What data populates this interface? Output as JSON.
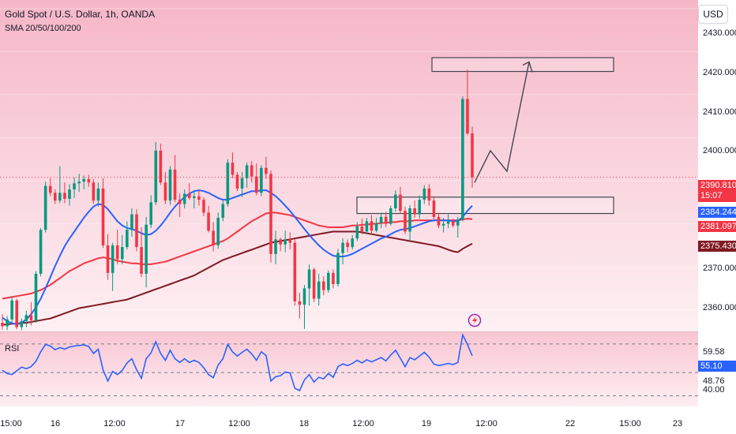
{
  "header": {
    "title": "Gold Spot / U.S. Dollar, 1h, OANDA",
    "indicators": "SMA 20/50/100/200",
    "currency_button": "USD"
  },
  "price_axis": {
    "ticks": [
      "2430.000",
      "2420.000",
      "2410.000",
      "2400.000",
      "2370.000",
      "2360.000"
    ]
  },
  "price_tags": {
    "last": {
      "value": "2390.810",
      "countdown": "15:07",
      "color": "#f23645"
    },
    "sma_blue": {
      "value": "2384.244",
      "color": "#2962ff"
    },
    "sma_red": {
      "value": "2381.097",
      "color": "#f23645"
    },
    "sma_dark": {
      "value": "2375.430",
      "color": "#801922"
    }
  },
  "rsi": {
    "label": "RSI",
    "ticks": [
      "59.58",
      "55.10",
      "48.76",
      "40.00"
    ],
    "current_color": "#2962ff"
  },
  "time_axis": {
    "labels": [
      "15:00",
      "16",
      "12:00",
      "17",
      "12:00",
      "18",
      "12:00",
      "19",
      "12:00",
      "22",
      "15:00",
      "23"
    ]
  },
  "chart_data": {
    "type": "candlestick",
    "title": "Gold Spot / U.S. Dollar, 1h, OANDA",
    "ylim": [
      2355,
      2432
    ],
    "up_color": "#089981",
    "down_color": "#f23645",
    "candles": [
      [
        2357.0,
        2359.0,
        2355.4,
        2356.2
      ],
      [
        2356.2,
        2358.6,
        2355.3,
        2357.8
      ],
      [
        2357.8,
        2363.0,
        2357.0,
        2362.2
      ],
      [
        2362.2,
        2362.6,
        2355.5,
        2356.0
      ],
      [
        2356.0,
        2358.0,
        2355.3,
        2357.4
      ],
      [
        2357.4,
        2359.8,
        2356.0,
        2358.8
      ],
      [
        2358.8,
        2361.8,
        2356.4,
        2357.6
      ],
      [
        2357.6,
        2369.0,
        2357.0,
        2368.4
      ],
      [
        2368.4,
        2379.0,
        2367.8,
        2378.6
      ],
      [
        2378.6,
        2389.8,
        2378.0,
        2388.8
      ],
      [
        2388.8,
        2390.6,
        2386.4,
        2387.2
      ],
      [
        2387.2,
        2388.0,
        2384.6,
        2385.4
      ],
      [
        2385.4,
        2393.4,
        2384.8,
        2387.2
      ],
      [
        2387.2,
        2389.6,
        2384.8,
        2385.8
      ],
      [
        2385.8,
        2389.2,
        2384.2,
        2388.0
      ],
      [
        2388.0,
        2390.8,
        2386.0,
        2389.4
      ],
      [
        2389.4,
        2391.6,
        2387.4,
        2389.8
      ],
      [
        2389.8,
        2391.2,
        2388.0,
        2390.4
      ],
      [
        2390.4,
        2391.4,
        2388.6,
        2389.6
      ],
      [
        2389.6,
        2390.4,
        2384.6,
        2385.4
      ],
      [
        2385.4,
        2389.6,
        2384.0,
        2388.2
      ],
      [
        2388.2,
        2390.6,
        2374.4,
        2375.0
      ],
      [
        2375.0,
        2377.6,
        2367.0,
        2368.6
      ],
      [
        2368.6,
        2375.6,
        2364.4,
        2375.0
      ],
      [
        2375.0,
        2378.6,
        2370.6,
        2371.8
      ],
      [
        2371.8,
        2377.4,
        2370.6,
        2374.6
      ],
      [
        2374.6,
        2380.6,
        2374.0,
        2378.6
      ],
      [
        2378.6,
        2383.6,
        2377.0,
        2382.2
      ],
      [
        2382.2,
        2383.4,
        2373.6,
        2374.6
      ],
      [
        2374.6,
        2379.2,
        2367.6,
        2368.4
      ],
      [
        2368.4,
        2381.6,
        2365.2,
        2379.8
      ],
      [
        2379.8,
        2386.6,
        2379.0,
        2385.0
      ],
      [
        2385.0,
        2399.0,
        2384.4,
        2397.0
      ],
      [
        2397.0,
        2398.6,
        2389.0,
        2389.6
      ],
      [
        2389.6,
        2392.0,
        2384.6,
        2385.4
      ],
      [
        2385.4,
        2393.4,
        2384.4,
        2392.6
      ],
      [
        2392.6,
        2396.0,
        2385.0,
        2385.6
      ],
      [
        2385.6,
        2387.0,
        2381.6,
        2384.6
      ],
      [
        2384.6,
        2388.0,
        2383.6,
        2387.0
      ],
      [
        2387.0,
        2389.4,
        2385.6,
        2386.0
      ],
      [
        2386.0,
        2387.8,
        2383.6,
        2386.4
      ],
      [
        2386.4,
        2387.8,
        2384.2,
        2385.6
      ],
      [
        2385.6,
        2386.2,
        2381.8,
        2382.6
      ],
      [
        2382.6,
        2384.2,
        2378.0,
        2378.4
      ],
      [
        2378.4,
        2380.4,
        2373.6,
        2375.0
      ],
      [
        2375.0,
        2382.6,
        2374.2,
        2381.4
      ],
      [
        2381.4,
        2385.4,
        2380.6,
        2384.6
      ],
      [
        2384.6,
        2395.0,
        2384.0,
        2394.2
      ],
      [
        2394.2,
        2396.6,
        2390.6,
        2391.4
      ],
      [
        2391.4,
        2392.0,
        2387.6,
        2388.2
      ],
      [
        2388.2,
        2392.0,
        2386.2,
        2390.6
      ],
      [
        2390.6,
        2394.2,
        2388.4,
        2393.6
      ],
      [
        2393.6,
        2394.6,
        2389.6,
        2391.0
      ],
      [
        2391.0,
        2394.0,
        2386.6,
        2387.2
      ],
      [
        2387.2,
        2393.6,
        2386.4,
        2393.0
      ],
      [
        2393.0,
        2395.6,
        2390.4,
        2391.6
      ],
      [
        2391.6,
        2392.4,
        2371.0,
        2373.0
      ],
      [
        2373.0,
        2378.4,
        2370.6,
        2376.4
      ],
      [
        2376.4,
        2376.8,
        2373.6,
        2375.2
      ],
      [
        2375.2,
        2378.4,
        2373.4,
        2376.4
      ],
      [
        2376.4,
        2378.0,
        2374.0,
        2375.6
      ],
      [
        2375.6,
        2376.4,
        2361.0,
        2362.0
      ],
      [
        2362.0,
        2364.0,
        2358.0,
        2361.2
      ],
      [
        2361.2,
        2365.8,
        2355.6,
        2365.0
      ],
      [
        2365.0,
        2370.6,
        2361.0,
        2369.4
      ],
      [
        2369.4,
        2369.8,
        2361.8,
        2362.6
      ],
      [
        2362.6,
        2368.4,
        2361.0,
        2366.6
      ],
      [
        2366.6,
        2367.8,
        2363.4,
        2364.6
      ],
      [
        2364.6,
        2369.2,
        2364.0,
        2368.6
      ],
      [
        2368.6,
        2369.4,
        2365.0,
        2366.0
      ],
      [
        2366.0,
        2374.2,
        2365.4,
        2373.2
      ],
      [
        2373.2,
        2376.6,
        2370.6,
        2375.6
      ],
      [
        2375.6,
        2376.4,
        2373.4,
        2374.6
      ],
      [
        2374.6,
        2377.4,
        2374.0,
        2376.6
      ],
      [
        2376.6,
        2380.4,
        2376.0,
        2379.4
      ],
      [
        2379.4,
        2381.2,
        2377.6,
        2378.2
      ],
      [
        2378.2,
        2381.4,
        2377.6,
        2380.6
      ],
      [
        2380.6,
        2382.0,
        2377.6,
        2378.4
      ],
      [
        2378.4,
        2381.4,
        2378.0,
        2380.2
      ],
      [
        2380.2,
        2382.6,
        2379.0,
        2381.6
      ],
      [
        2381.6,
        2382.8,
        2379.2,
        2380.0
      ],
      [
        2380.0,
        2384.2,
        2379.6,
        2383.6
      ],
      [
        2383.6,
        2387.8,
        2382.8,
        2386.8
      ],
      [
        2386.8,
        2388.6,
        2382.4,
        2383.0
      ],
      [
        2383.0,
        2384.0,
        2377.6,
        2378.2
      ],
      [
        2378.2,
        2384.4,
        2376.0,
        2383.6
      ],
      [
        2383.6,
        2385.4,
        2381.4,
        2382.2
      ],
      [
        2382.2,
        2386.6,
        2381.2,
        2385.6
      ],
      [
        2385.6,
        2389.0,
        2384.6,
        2388.2
      ],
      [
        2388.2,
        2389.2,
        2384.2,
        2385.4
      ],
      [
        2385.4,
        2386.4,
        2381.0,
        2381.6
      ],
      [
        2381.6,
        2382.6,
        2379.0,
        2379.6
      ],
      [
        2379.6,
        2381.4,
        2378.0,
        2380.0
      ],
      [
        2380.0,
        2382.2,
        2379.0,
        2380.6
      ],
      [
        2380.6,
        2381.2,
        2379.2,
        2379.6
      ],
      [
        2379.6,
        2381.6,
        2376.8,
        2381.0
      ],
      [
        2381.0,
        2409.6,
        2380.6,
        2409.0
      ],
      [
        2409.0,
        2415.8,
        2400.6,
        2401.0
      ],
      [
        2401.0,
        2402.6,
        2388.4,
        2390.8
      ]
    ],
    "sma_20": [
      2358.2,
      2357.4,
      2356.9,
      2356.6,
      2357.0,
      2357.8,
      2359.0,
      2360.6,
      2362.6,
      2365.0,
      2367.6,
      2370.2,
      2372.6,
      2374.8,
      2376.6,
      2378.2,
      2379.8,
      2381.4,
      2382.8,
      2384.0,
      2384.6,
      2384.4,
      2383.4,
      2382.0,
      2380.6,
      2379.6,
      2379.0,
      2378.8,
      2378.4,
      2377.8,
      2377.4,
      2377.6,
      2378.4,
      2379.6,
      2381.0,
      2382.6,
      2384.0,
      2385.2,
      2386.2,
      2387.0,
      2387.6,
      2387.8,
      2387.6,
      2387.2,
      2386.6,
      2386.0,
      2385.6,
      2385.6,
      2386.0,
      2386.4,
      2386.8,
      2387.2,
      2387.6,
      2387.6,
      2387.8,
      2387.8,
      2387.2,
      2386.4,
      2385.4,
      2384.2,
      2383.0,
      2381.6,
      2380.2,
      2378.8,
      2377.4,
      2376.2,
      2375.0,
      2374.0,
      2373.2,
      2372.6,
      2372.4,
      2372.4,
      2372.6,
      2373.0,
      2373.6,
      2374.2,
      2374.8,
      2375.4,
      2376.0,
      2376.6,
      2377.0,
      2377.6,
      2378.2,
      2378.6,
      2378.8,
      2379.0,
      2379.4,
      2379.8,
      2380.2,
      2380.6,
      2380.8,
      2380.8,
      2380.8,
      2380.8,
      2380.6,
      2380.6,
      2381.6,
      2383.0,
      2384.2
    ],
    "sma_50": [
      2362.6,
      2362.8,
      2363.0,
      2363.2,
      2363.4,
      2363.6,
      2363.8,
      2364.2,
      2364.6,
      2365.2,
      2365.8,
      2366.6,
      2367.4,
      2368.2,
      2369.0,
      2369.6,
      2370.2,
      2370.8,
      2371.2,
      2371.6,
      2372.0,
      2372.2,
      2372.0,
      2371.8,
      2371.4,
      2371.2,
      2371.0,
      2370.8,
      2370.8,
      2370.6,
      2370.6,
      2370.6,
      2370.8,
      2371.0,
      2371.2,
      2371.6,
      2372.0,
      2372.4,
      2372.8,
      2373.2,
      2373.6,
      2374.0,
      2374.4,
      2374.8,
      2375.2,
      2375.6,
      2376.0,
      2376.6,
      2377.4,
      2378.2,
      2379.0,
      2379.8,
      2380.6,
      2381.2,
      2381.8,
      2382.4,
      2382.6,
      2382.6,
      2382.4,
      2382.2,
      2382.0,
      2381.6,
      2381.2,
      2380.8,
      2380.4,
      2380.0,
      2379.6,
      2379.4,
      2379.2,
      2379.2,
      2379.2,
      2379.2,
      2379.4,
      2379.6,
      2379.6,
      2379.8,
      2379.8,
      2380.0,
      2380.0,
      2380.2,
      2380.2,
      2380.4,
      2380.4,
      2380.6,
      2380.6,
      2380.6,
      2380.8,
      2380.8,
      2380.8,
      2380.8,
      2380.8,
      2380.8,
      2380.8,
      2380.8,
      2380.8,
      2380.8,
      2381.0,
      2381.2,
      2381.1
    ],
    "sma_dark": [
      2356.6,
      2356.6,
      2356.8,
      2356.8,
      2357.0,
      2357.0,
      2357.2,
      2357.4,
      2357.6,
      2357.8,
      2358.0,
      2358.4,
      2358.8,
      2359.2,
      2359.6,
      2360.0,
      2360.4,
      2360.6,
      2360.8,
      2361.0,
      2361.2,
      2361.4,
      2361.6,
      2361.8,
      2362.0,
      2362.2,
      2362.4,
      2362.8,
      2363.2,
      2363.6,
      2364.0,
      2364.4,
      2364.8,
      2365.2,
      2365.6,
      2366.0,
      2366.4,
      2366.8,
      2367.2,
      2367.6,
      2368.0,
      2368.6,
      2369.2,
      2369.8,
      2370.4,
      2371.0,
      2371.6,
      2372.0,
      2372.4,
      2372.8,
      2373.2,
      2373.6,
      2374.0,
      2374.4,
      2374.8,
      2375.2,
      2375.6,
      2375.8,
      2376.0,
      2376.2,
      2376.4,
      2376.6,
      2376.8,
      2377.0,
      2377.2,
      2377.4,
      2377.6,
      2377.8,
      2378.0,
      2378.2,
      2378.2,
      2378.2,
      2378.2,
      2378.2,
      2378.2,
      2378.0,
      2377.8,
      2377.6,
      2377.4,
      2377.2,
      2377.0,
      2376.8,
      2376.6,
      2376.4,
      2376.2,
      2376.0,
      2375.8,
      2375.6,
      2375.4,
      2375.2,
      2375.0,
      2374.8,
      2374.4,
      2374.0,
      2373.6,
      2373.4,
      2374.2,
      2374.8,
      2375.4
    ],
    "rsi_values": [
      49.6,
      48.4,
      48.0,
      49.4,
      50.8,
      50.2,
      51.0,
      53.0,
      56.6,
      59.4,
      58.8,
      57.4,
      58.2,
      57.6,
      58.4,
      58.8,
      59.0,
      59.2,
      58.6,
      56.0,
      57.6,
      49.8,
      45.6,
      49.2,
      48.0,
      49.6,
      52.4,
      54.0,
      49.8,
      46.6,
      54.0,
      56.2,
      60.4,
      56.0,
      53.4,
      57.2,
      54.0,
      52.6,
      54.0,
      52.6,
      53.4,
      52.6,
      50.6,
      48.0,
      46.8,
      51.6,
      54.0,
      59.4,
      56.6,
      55.0,
      56.4,
      57.6,
      55.8,
      53.4,
      56.6,
      55.2,
      45.6,
      47.2,
      47.6,
      49.0,
      48.6,
      42.8,
      42.0,
      46.0,
      48.0,
      45.2,
      47.0,
      46.4,
      48.4,
      47.0,
      51.0,
      52.0,
      51.4,
      52.2,
      53.4,
      52.4,
      53.6,
      52.8,
      53.6,
      54.4,
      53.2,
      55.4,
      57.2,
      54.2,
      51.0,
      54.4,
      53.6,
      55.0,
      56.4,
      54.6,
      52.0,
      51.4,
      51.8,
      52.2,
      51.8,
      52.6,
      63.0,
      59.4,
      55.1
    ],
    "rsi_lines": [
      59.58,
      48.76,
      40.0
    ],
    "rsi_ylim": [
      36,
      64
    ],
    "zones": [
      {
        "from": 2415.4,
        "to": 2418.6
      },
      {
        "from": 2382.4,
        "to": 2386.2
      }
    ],
    "projection": [
      [
        2389.6
      ],
      [
        2397.0
      ],
      [
        2392.2
      ],
      [
        2417.6
      ]
    ]
  }
}
